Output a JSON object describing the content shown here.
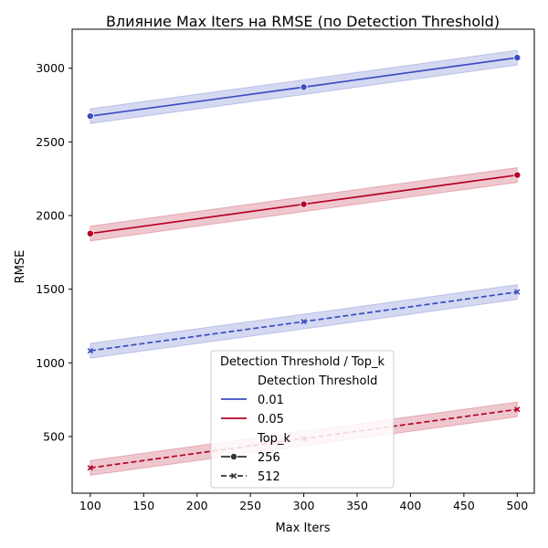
{
  "chart_data": {
    "type": "line",
    "title": "Влияние Max Iters на RMSE (по Detection Threshold)",
    "xlabel": "Max Iters",
    "ylabel": "RMSE",
    "xlim": [
      83,
      516
    ],
    "ylim": [
      115,
      3265
    ],
    "xticks": [
      100,
      150,
      200,
      250,
      300,
      350,
      400,
      450,
      500
    ],
    "yticks": [
      500,
      1000,
      1500,
      2000,
      2500,
      3000
    ],
    "x": [
      100,
      300,
      500
    ],
    "band_halfwidth": 50,
    "series": [
      {
        "threshold": "0.01",
        "top_k": "256",
        "color": "#3b4cc0",
        "dash": "solid",
        "marker": "circle",
        "values": [
          2675,
          2872,
          3072
        ]
      },
      {
        "threshold": "0.05",
        "top_k": "256",
        "color": "#b40426",
        "dash": "solid",
        "marker": "circle",
        "values": [
          1878,
          2077,
          2275
        ]
      },
      {
        "threshold": "0.01",
        "top_k": "512",
        "color": "#3b4cc0",
        "dash": "dashed",
        "marker": "x",
        "values": [
          1082,
          1280,
          1481
        ]
      },
      {
        "threshold": "0.05",
        "top_k": "512",
        "color": "#b40426",
        "dash": "dashed",
        "marker": "x",
        "values": [
          287,
          486,
          684
        ]
      }
    ],
    "legend": {
      "title": "Detection Threshold / Top_k",
      "placement": "lower-center",
      "threshold_header": "Detection Threshold",
      "threshold_entries": [
        {
          "label": "0.01",
          "color": "#3b4cc0"
        },
        {
          "label": "0.05",
          "color": "#b40426"
        }
      ],
      "topk_header": "Top_k",
      "topk_entries": [
        {
          "label": "256",
          "dash": "solid",
          "marker": "circle"
        },
        {
          "label": "512",
          "dash": "dashed",
          "marker": "x"
        }
      ]
    },
    "grid": false
  }
}
